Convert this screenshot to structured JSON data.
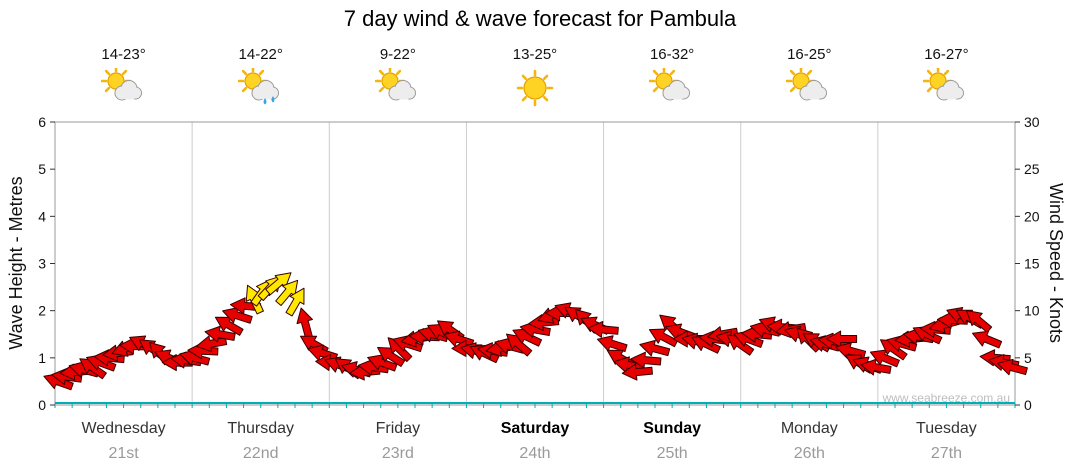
{
  "title": "7 day wind & wave forecast for Pambula",
  "watermark": "www.seabreeze.com.au",
  "axes": {
    "left_label": "Wave Height - Metres",
    "right_label": "Wind Speed - Knots",
    "left_ticks": [
      0,
      1,
      2,
      3,
      4,
      5,
      6
    ],
    "right_ticks": [
      0,
      5,
      10,
      15,
      20,
      25,
      30
    ]
  },
  "days": [
    {
      "name": "Wednesday",
      "date": "21st",
      "temp": "14-23°",
      "icon": "sun-cloud",
      "bold": false
    },
    {
      "name": "Thursday",
      "date": "22nd",
      "temp": "14-22°",
      "icon": "sun-cloud-rain",
      "bold": false
    },
    {
      "name": "Friday",
      "date": "23rd",
      "temp": "9-22°",
      "icon": "sun-cloud",
      "bold": false
    },
    {
      "name": "Saturday",
      "date": "24th",
      "temp": "13-25°",
      "icon": "sun",
      "bold": true
    },
    {
      "name": "Sunday",
      "date": "25th",
      "temp": "16-32°",
      "icon": "sun-cloud",
      "bold": true
    },
    {
      "name": "Monday",
      "date": "26th",
      "temp": "16-25°",
      "icon": "sun-cloud",
      "bold": false
    },
    {
      "name": "Tuesday",
      "date": "27th",
      "temp": "16-27°",
      "icon": "sun-cloud",
      "bold": false
    }
  ],
  "chart_data": {
    "type": "wind-arrows",
    "title": "7 day wind & wave forecast for Pambula",
    "xlabel_days": [
      "Wednesday 21st",
      "Thursday 22nd",
      "Friday 23rd",
      "Saturday 24th",
      "Sunday 25th",
      "Monday 26th",
      "Tuesday 27th"
    ],
    "points_per_day": 8,
    "interval_hours": 3,
    "ylim_left_metres": [
      0,
      6
    ],
    "ylim_right_knots": [
      0,
      30
    ],
    "wind_knots": [
      2.5,
      3.5,
      4,
      5,
      6,
      6.5,
      5.5,
      4.5,
      5,
      6.5,
      8.5,
      10.5,
      12,
      13,
      11,
      6.5,
      4.5,
      4,
      3.5,
      4.5,
      6,
      7,
      7.5,
      8,
      6,
      5.5,
      6,
      6.5,
      8,
      9.5,
      10,
      9,
      8,
      5,
      3.5,
      6,
      8.5,
      7,
      6.5,
      7.5,
      6.5,
      7.5,
      8.5,
      8,
      7,
      6.5,
      7,
      4.5,
      4,
      6,
      7,
      7.5,
      8.5,
      9.5,
      9,
      5,
      4
    ],
    "direction_deg": [
      200,
      175,
      215,
      185,
      160,
      205,
      225,
      180,
      195,
      170,
      210,
      185,
      305,
      320,
      300,
      210,
      185,
      215,
      175,
      200,
      225,
      170,
      195,
      215,
      180,
      205,
      170,
      220,
      190,
      160,
      200,
      225,
      185,
      210,
      175,
      195,
      220,
      180,
      205,
      170,
      215,
      185,
      200,
      170,
      225,
      195,
      180,
      210,
      190,
      215,
      175,
      205,
      165,
      200,
      220,
      185,
      195
    ],
    "highlight_threshold_knots": 11,
    "colors": {
      "arrow": "#e60000",
      "arrow_stroke": "#3a0000",
      "highlight": "#ffe800",
      "grid": "#cccccc",
      "frame": "#999999",
      "x_axis": "#00AEB8"
    }
  }
}
